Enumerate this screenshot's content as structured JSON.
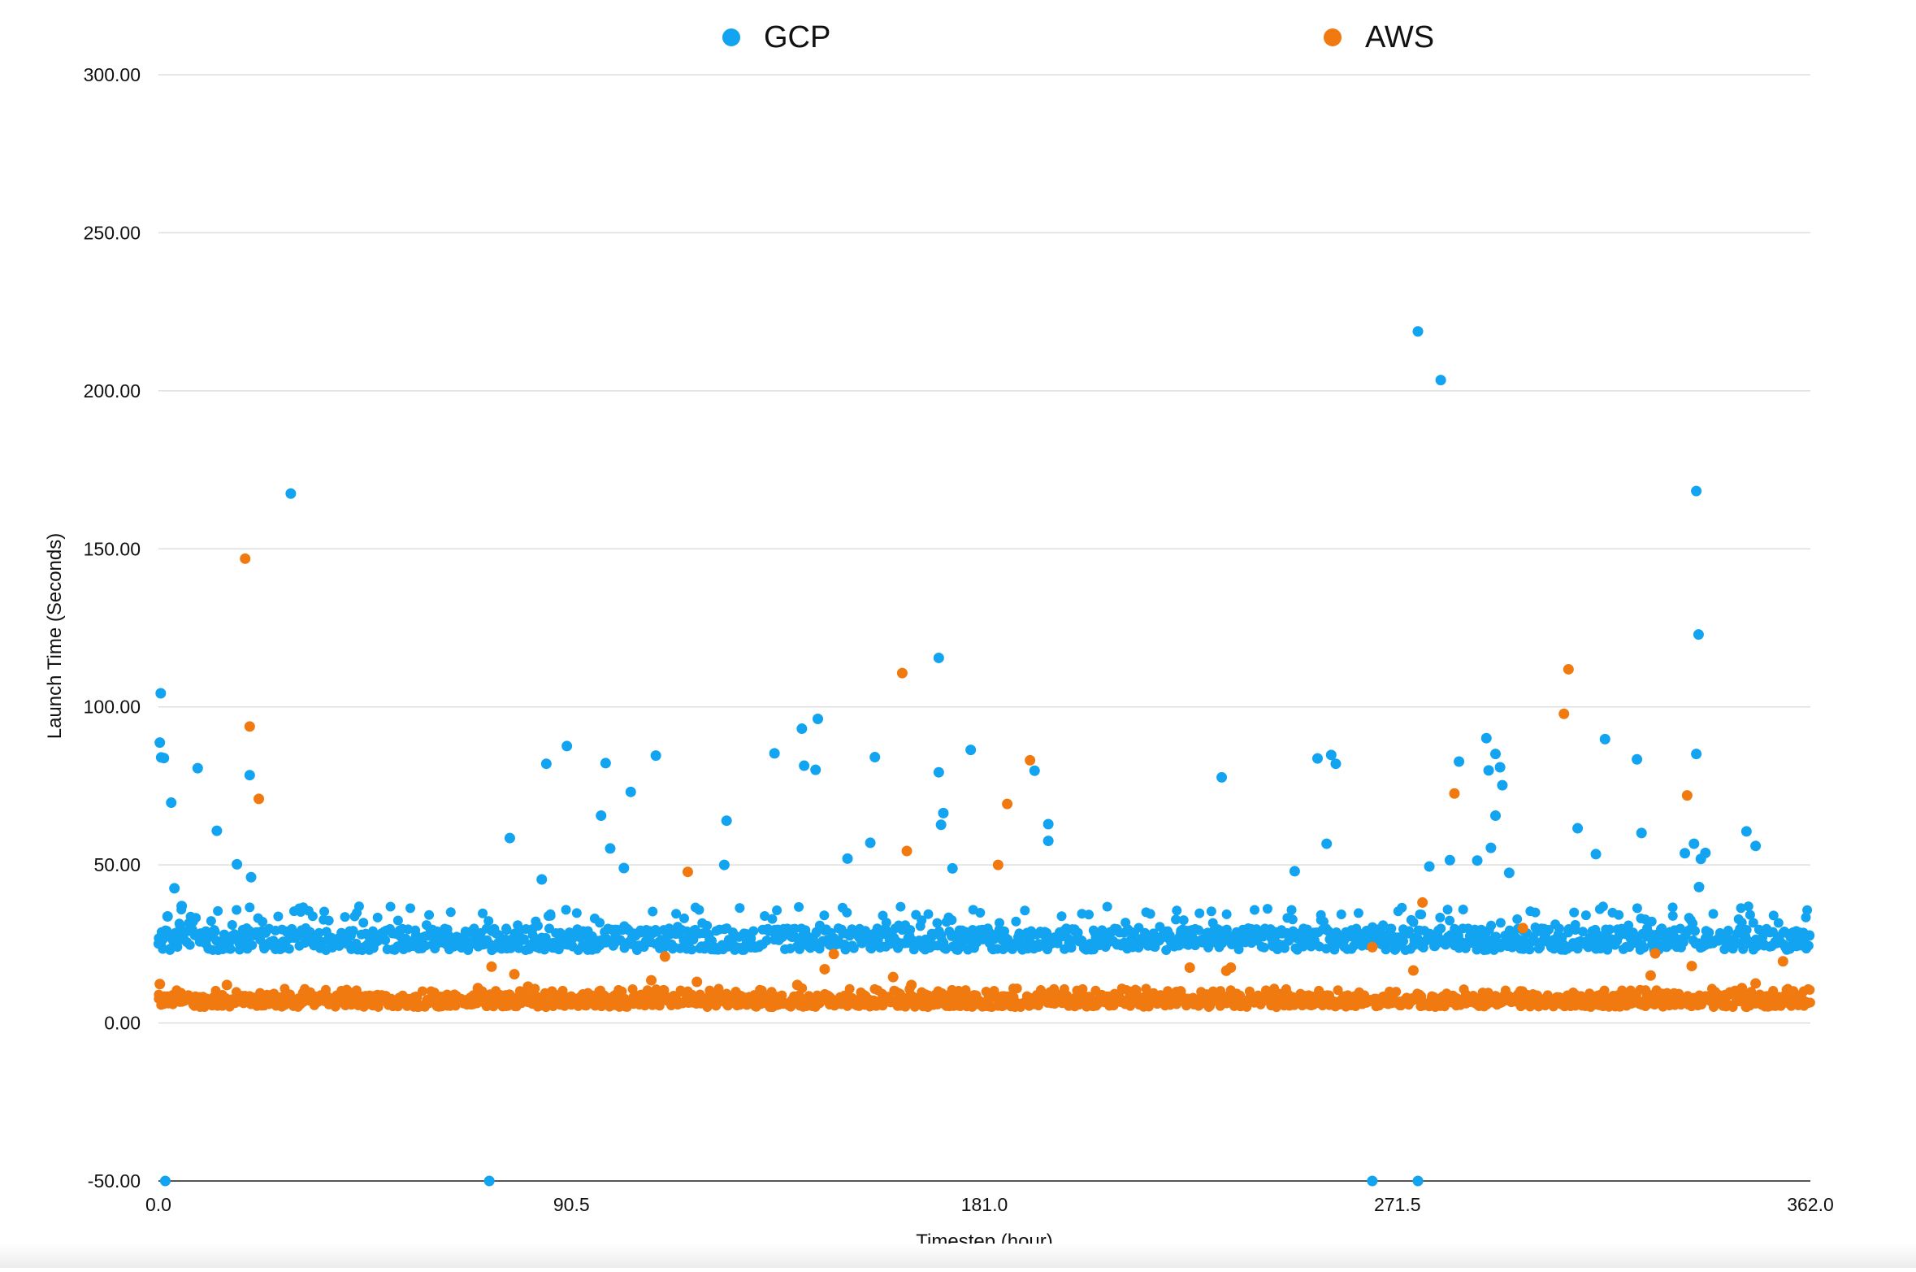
{
  "chart_data": {
    "type": "scatter",
    "title": "",
    "xlabel": "Timestep (hour)",
    "ylabel": "Launch Time (Seconds)",
    "xlim": [
      0,
      362
    ],
    "ylim": [
      -50,
      300
    ],
    "x_ticks": [
      "0.0",
      "90.5",
      "181.0",
      "271.5",
      "362.0"
    ],
    "y_ticks": [
      "300.00",
      "250.00",
      "200.00",
      "150.00",
      "100.00",
      "50.00",
      "0.00",
      "-50.00"
    ],
    "grid": true,
    "legend_position": "top",
    "series": [
      {
        "name": "GCP",
        "color": "#12a4f0",
        "note_dense_band": "bulk of points between 23 and 36 seconds across all timesteps",
        "points": [
          [
            0.5,
            104.3
          ],
          [
            0.3,
            88.7
          ],
          [
            0.6,
            84.0
          ],
          [
            1.2,
            83.8
          ],
          [
            2.8,
            69.7
          ],
          [
            3.5,
            42.6
          ],
          [
            8.6,
            80.6
          ],
          [
            12.8,
            60.8
          ],
          [
            17.2,
            50.2
          ],
          [
            20.0,
            78.4
          ],
          [
            20.3,
            46.1
          ],
          [
            29.0,
            167.5
          ],
          [
            77.0,
            58.5
          ],
          [
            84.0,
            45.4
          ],
          [
            85.0,
            82.0
          ],
          [
            89.5,
            87.6
          ],
          [
            98.0,
            82.2
          ],
          [
            97.0,
            65.6
          ],
          [
            99.0,
            55.2
          ],
          [
            102.0,
            49.0
          ],
          [
            103.5,
            73.1
          ],
          [
            109.0,
            84.6
          ],
          [
            124.0,
            50.0
          ],
          [
            124.5,
            64.0
          ],
          [
            135.0,
            85.3
          ],
          [
            141.0,
            93.1
          ],
          [
            141.5,
            81.4
          ],
          [
            144.0,
            80.1
          ],
          [
            144.5,
            96.2
          ],
          [
            151.0,
            52.0
          ],
          [
            156.0,
            57.0
          ],
          [
            157.0,
            84.1
          ],
          [
            171.0,
            115.5
          ],
          [
            171.0,
            79.3
          ],
          [
            172.0,
            66.4
          ],
          [
            171.5,
            62.7
          ],
          [
            174.0,
            48.9
          ],
          [
            178.0,
            86.4
          ],
          [
            192.0,
            79.8
          ],
          [
            195.0,
            62.9
          ],
          [
            195.0,
            57.6
          ],
          [
            233.0,
            77.7
          ],
          [
            249.0,
            48.0
          ],
          [
            254.0,
            83.7
          ],
          [
            256.0,
            56.7
          ],
          [
            257.0,
            84.8
          ],
          [
            258.0,
            82.0
          ],
          [
            276.0,
            218.8
          ],
          [
            281.0,
            203.4
          ],
          [
            278.5,
            49.5
          ],
          [
            283.0,
            51.5
          ],
          [
            285.0,
            82.7
          ],
          [
            289.0,
            51.4
          ],
          [
            291.0,
            90.1
          ],
          [
            291.5,
            79.9
          ],
          [
            293.0,
            85.1
          ],
          [
            294.0,
            80.9
          ],
          [
            294.5,
            75.2
          ],
          [
            292.0,
            55.4
          ],
          [
            293.0,
            65.6
          ],
          [
            296.0,
            47.5
          ],
          [
            311.0,
            61.6
          ],
          [
            315.0,
            53.4
          ],
          [
            317.0,
            89.8
          ],
          [
            324.0,
            83.4
          ],
          [
            325.0,
            60.1
          ],
          [
            337.0,
            168.3
          ],
          [
            337.5,
            122.9
          ],
          [
            337.0,
            85.1
          ],
          [
            336.5,
            56.7
          ],
          [
            339.0,
            53.8
          ],
          [
            338.0,
            51.9
          ],
          [
            334.5,
            53.7
          ],
          [
            348.0,
            60.6
          ],
          [
            350.0,
            56.0
          ],
          [
            337.6,
            43.0
          ],
          [
            2.0,
            33.7
          ],
          [
            5.1,
            37.0
          ],
          [
            1.5,
            -50.0
          ],
          [
            72.5,
            -50.0
          ],
          [
            266.0,
            -50.0
          ],
          [
            276.0,
            -50.0
          ]
        ]
      },
      {
        "name": "AWS",
        "color": "#f07a10",
        "note_dense_band": "bulk of points between 5 and 10 seconds across all timesteps",
        "points": [
          [
            0.3,
            12.3
          ],
          [
            15.0,
            12.0
          ],
          [
            19.0,
            146.9
          ],
          [
            20.0,
            93.8
          ],
          [
            22.0,
            70.9
          ],
          [
            70.0,
            11.0
          ],
          [
            78.0,
            15.4
          ],
          [
            81.0,
            11.5
          ],
          [
            73.0,
            17.8
          ],
          [
            108.0,
            13.5
          ],
          [
            111.0,
            21.0
          ],
          [
            116.0,
            47.8
          ],
          [
            118.0,
            13.0
          ],
          [
            140.0,
            12.0
          ],
          [
            146.0,
            17.0
          ],
          [
            148.0,
            21.8
          ],
          [
            161.0,
            14.5
          ],
          [
            163.0,
            110.7
          ],
          [
            164.0,
            54.4
          ],
          [
            165.0,
            12.0
          ],
          [
            184.0,
            50.0
          ],
          [
            186.0,
            69.3
          ],
          [
            191.0,
            83.1
          ],
          [
            224.0,
            10.0
          ],
          [
            226.0,
            17.5
          ],
          [
            234.0,
            16.5
          ],
          [
            235.0,
            17.5
          ],
          [
            266.0,
            24.0
          ],
          [
            275.0,
            16.6
          ],
          [
            277.0,
            38.1
          ],
          [
            284.0,
            72.6
          ],
          [
            308.0,
            97.8
          ],
          [
            309.0,
            111.9
          ],
          [
            327.0,
            15.0
          ],
          [
            328.0,
            22.0
          ],
          [
            335.0,
            72.0
          ],
          [
            336.0,
            18.0
          ],
          [
            347.0,
            11.0
          ],
          [
            350.0,
            12.5
          ],
          [
            356.0,
            19.5
          ],
          [
            266.0,
            24.0
          ],
          [
            299.0,
            30.0
          ]
        ]
      }
    ],
    "dense_band_samples": 720
  }
}
